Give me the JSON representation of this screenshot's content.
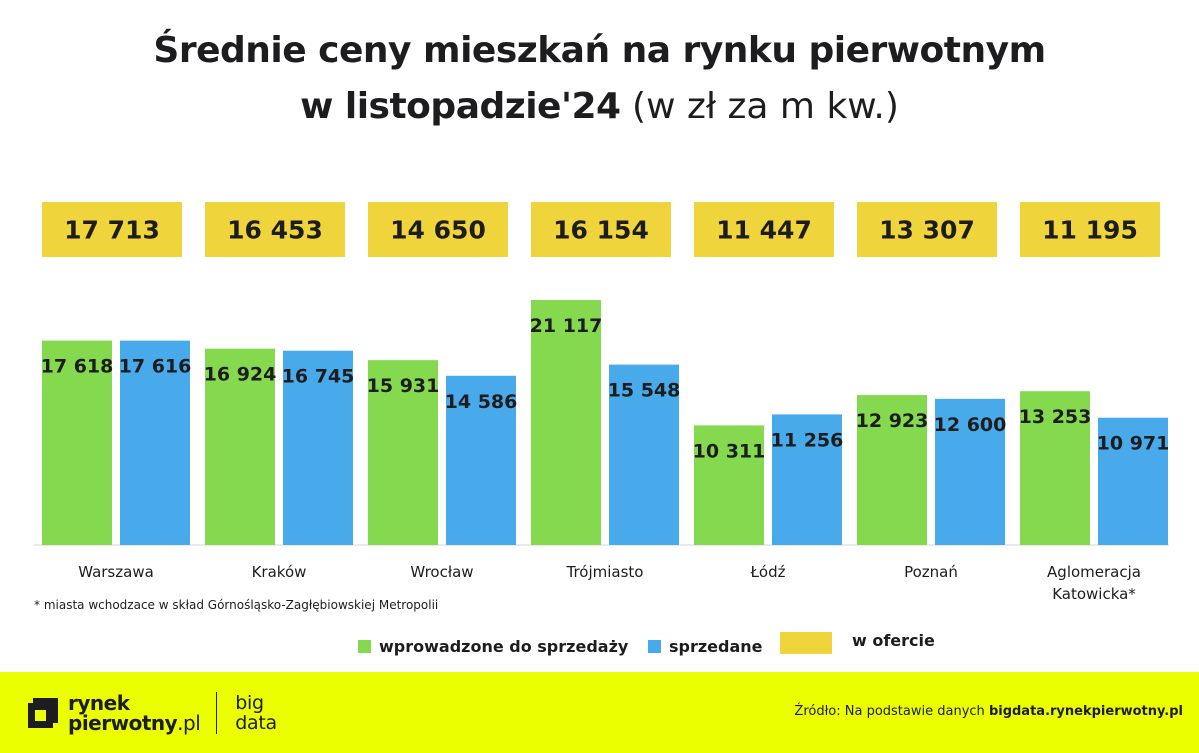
{
  "title": {
    "line1": "Średnie ceny mieszkań na rynku pierwotnym",
    "line2_bold": "w listopadzie'24",
    "line2_light": "(w zł za m kw.)"
  },
  "colors": {
    "green": "#85d94f",
    "blue": "#48aaea",
    "yellow": "#f0d43c",
    "footer": "#ebff00",
    "text": "#1d1d1f"
  },
  "chart_data": {
    "type": "bar",
    "categories": [
      "Warszawa",
      "Kraków",
      "Wrocław",
      "Trójmiasto",
      "Łódź",
      "Poznań",
      "Aglomeracja Katowicka*"
    ],
    "category_lines": [
      [
        "Warszawa"
      ],
      [
        "Kraków"
      ],
      [
        "Wrocław"
      ],
      [
        "Trójmiasto"
      ],
      [
        "Łódź"
      ],
      [
        "Poznań"
      ],
      [
        "Aglomeracja",
        "Katowicka*"
      ]
    ],
    "series": [
      {
        "name": "wprowadzone do sprzedaży",
        "color": "#85d94f",
        "values": [
          17618,
          16924,
          15931,
          21117,
          10311,
          12923,
          13253
        ],
        "labels": [
          "17 618",
          "16 924",
          "15 931",
          "21 117",
          "10 311",
          "12 923",
          "13 253"
        ]
      },
      {
        "name": "sprzedane",
        "color": "#48aaea",
        "values": [
          17616,
          16745,
          14586,
          15548,
          11256,
          12600,
          10971
        ],
        "labels": [
          "17 616",
          "16 745",
          "14 586",
          "15 548",
          "11 256",
          "12 600",
          "10 971"
        ]
      },
      {
        "name": "w ofercie",
        "color": "#f0d43c",
        "values": [
          17713,
          16453,
          14650,
          16154,
          11447,
          13307,
          11195
        ],
        "labels": [
          "17 713",
          "16 453",
          "14 650",
          "16 154",
          "11 447",
          "13 307",
          "11 195"
        ]
      }
    ],
    "title": "Średnie ceny mieszkań na rynku pierwotnym w listopadzie'24 (w zł za m kw.)",
    "xlabel": "",
    "ylabel": "",
    "ylim": [
      0,
      21117
    ],
    "grid": false
  },
  "footnote": "* miasta wchodzace w skład Górnośląsko-Zagłębiowskiej Metropolii",
  "legend": {
    "green_label": "wprowadzone do sprzedaży",
    "blue_label": "sprzedane",
    "yellow_label": "w ofercie"
  },
  "footer": {
    "logo_line1": "rynek",
    "logo_line2": "pierwotny",
    "logo_suffix": ".pl",
    "bigdata_line1": "big",
    "bigdata_line2": "data",
    "source_prefix": "Źródło: Na podstawie danych",
    "source_bold": "bigdata.rynekpierwotny.pl"
  }
}
